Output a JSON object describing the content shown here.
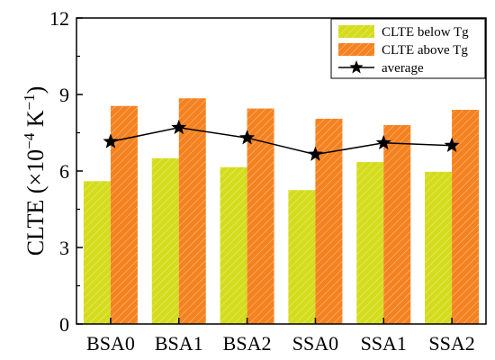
{
  "chart_data": {
    "type": "bar",
    "categories": [
      "BSA0",
      "BSA1",
      "BSA2",
      "SSA0",
      "SSA1",
      "SSA2"
    ],
    "series": [
      {
        "name": "CLTE below Tg",
        "kind": "bar",
        "color": "#d4dc1c",
        "values": [
          5.6,
          6.5,
          6.15,
          5.25,
          6.35,
          5.97
        ]
      },
      {
        "name": "CLTE above Tg",
        "kind": "bar",
        "color": "#f58220",
        "values": [
          8.55,
          8.85,
          8.45,
          8.05,
          7.8,
          8.4
        ]
      },
      {
        "name": "average",
        "kind": "line",
        "marker": "star",
        "color": "#000000",
        "values": [
          7.15,
          7.7,
          7.3,
          6.65,
          7.1,
          7.0
        ]
      }
    ],
    "ylabel": {
      "prefix": "CLTE (×10",
      "exponent": "−4",
      "unit": " K",
      "unit_exponent": "−1",
      "suffix": ")"
    },
    "ylim": [
      0,
      12
    ],
    "yticks": [
      "0",
      "3",
      "6",
      "9",
      "12"
    ],
    "grid": false,
    "legend_position": "top-right"
  }
}
